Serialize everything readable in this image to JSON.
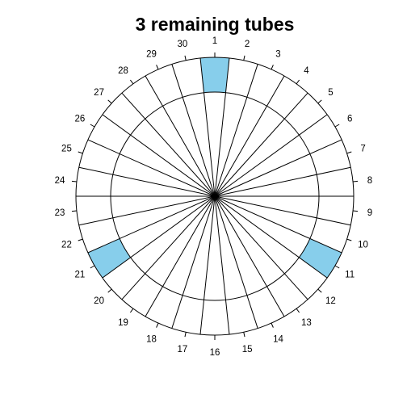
{
  "title": "3 remaining tubes",
  "diagram": {
    "slot_count": 30,
    "slot_labels": [
      "1",
      "2",
      "3",
      "4",
      "5",
      "6",
      "7",
      "8",
      "9",
      "10",
      "11",
      "12",
      "13",
      "14",
      "15",
      "16",
      "17",
      "18",
      "19",
      "20",
      "21",
      "22",
      "23",
      "24",
      "25",
      "26",
      "27",
      "28",
      "29",
      "30"
    ],
    "remaining_tubes": [
      1,
      11,
      21
    ],
    "colors": {
      "filled": "#87CEEB",
      "empty": "#FFFFFF",
      "line": "#000000"
    }
  }
}
